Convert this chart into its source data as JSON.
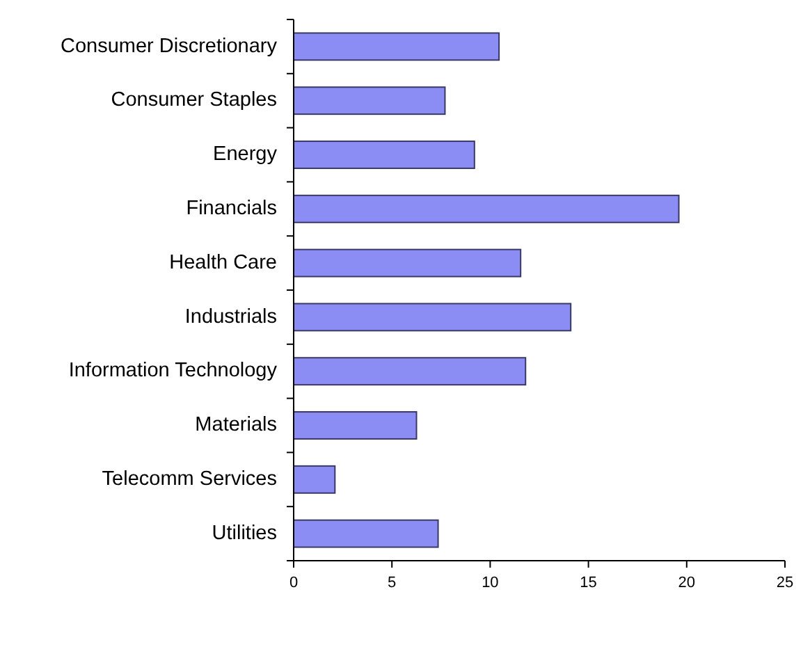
{
  "chart_data": {
    "type": "bar",
    "orientation": "horizontal",
    "categories": [
      "Consumer Discretionary",
      "Consumer Staples",
      "Energy",
      "Financials",
      "Health Care",
      "Industrials",
      "Information Technology",
      "Materials",
      "Telecomm Services",
      "Utilities"
    ],
    "values": [
      10.45,
      7.7,
      9.2,
      19.6,
      11.55,
      14.1,
      11.8,
      6.25,
      2.1,
      7.35
    ],
    "color": "#8c8cf5",
    "xlim": [
      0,
      25
    ],
    "xticks": [
      0,
      5,
      10,
      15,
      20,
      25
    ],
    "grid": false
  }
}
